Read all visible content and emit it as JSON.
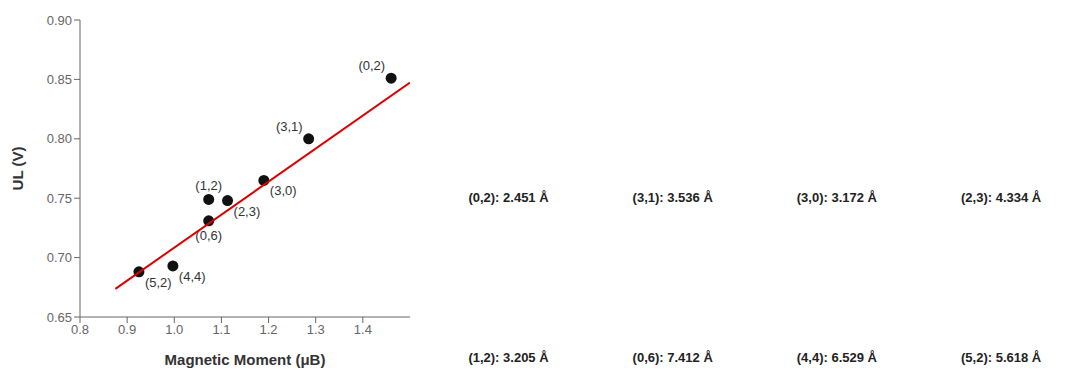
{
  "chart_data": {
    "type": "scatter",
    "xlabel": "Magnetic Moment (μB)",
    "ylabel": "UL (V)",
    "xlim": [
      0.8,
      1.5
    ],
    "ylim": [
      0.65,
      0.9
    ],
    "xticks": [
      0.8,
      0.9,
      {
        "value": 1,
        "label": "1.0"
      },
      1.1,
      1.2,
      1.3,
      1.4
    ],
    "yticks": [
      0.65,
      {
        "value": 0.7,
        "label": "0.70"
      },
      0.75,
      {
        "value": 0.8,
        "label": "0.80"
      },
      0.85,
      {
        "value": 0.9,
        "label": "0.90"
      }
    ],
    "series": [
      {
        "type": "scatter",
        "color": "#111111",
        "x": [
          0.925,
          0.997,
          1.073,
          1.073,
          1.113,
          1.19,
          1.285,
          1.46
        ],
        "values": [
          0.688,
          0.693,
          0.731,
          0.749,
          0.748,
          0.765,
          0.8,
          0.851
        ],
        "labels": [
          "(5,2)",
          "(4,4)",
          "(0,6)",
          "(1,2)",
          "(2,3)",
          "(3,0)",
          "(3,1)",
          "(0,2)"
        ]
      },
      {
        "type": "line",
        "color": "#dd0000",
        "x": [
          0.875,
          1.5
        ],
        "values": [
          0.673675,
          0.8473
        ]
      }
    ],
    "annotations": [
      "(0,2): 2.451 Å",
      "(3,1): 3.536 Å",
      "(3,0): 3.172 Å",
      "(2,3): 4.334 Å",
      "(1,2): 3.205 Å",
      "(0,6): 7.412 Å",
      "(4,4): 6.529 Å",
      "(5,2): 5.618 Å"
    ]
  }
}
